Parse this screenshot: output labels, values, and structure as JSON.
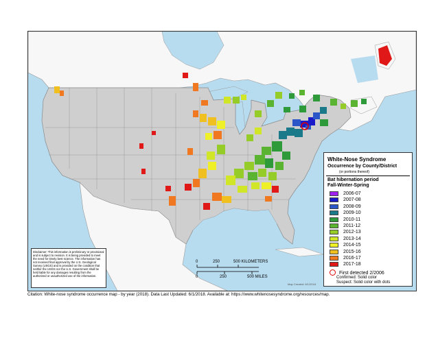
{
  "legend": {
    "title": "White-Nose Syndrome",
    "subtitle": "Occurrence by County/District",
    "subtitle_note": "(or portions thereof)",
    "period_title": "Bat hibernation period",
    "period_subtitle": "Fall-Winter-Spring",
    "items": [
      {
        "label": "2006-07",
        "color": "#a020f0"
      },
      {
        "label": "2007-08",
        "color": "#1a1ac8"
      },
      {
        "label": "2008-09",
        "color": "#2a56c8"
      },
      {
        "label": "2009-10",
        "color": "#1a7a8a"
      },
      {
        "label": "2010-11",
        "color": "#2e9a3a"
      },
      {
        "label": "2011-12",
        "color": "#5ab432"
      },
      {
        "label": "2012-13",
        "color": "#96cc28"
      },
      {
        "label": "2013-14",
        "color": "#d2e628"
      },
      {
        "label": "2014-15",
        "color": "#f0f028"
      },
      {
        "label": "2015-16",
        "color": "#f0c020"
      },
      {
        "label": "2016-17",
        "color": "#f07820"
      },
      {
        "label": "2017-18",
        "color": "#e01818"
      }
    ],
    "first_detected": "First detected 2/2006",
    "confirmed": "Confirmed:  Solid color",
    "suspect": "Suspect:  Solid color with dots"
  },
  "disclaimer": "Disclaimer: This information is preliminary or provisional and is subject to revision. It is being provided to meet the need for timely best science. The information has not received final approval by the U.S. Geological Survey (USGS) and is provided on the condition that neither the USGS nor the U.S. Government shall be held liable for any damages resulting from the authorized or unauthorized use of the information.",
  "scale": {
    "km_ticks": [
      "0",
      "250",
      "500 KILOMETERS"
    ],
    "mi_ticks": [
      "0",
      "250",
      "500 MILES"
    ]
  },
  "credit": "Map Created: 6/1/2018",
  "citation": "Citation: White-nose syndrome occurrence map - by year (2018).  Data Last Updated: 6/1/2018. Available at: https://www.whitenosesyndrome.org/resources/map."
}
